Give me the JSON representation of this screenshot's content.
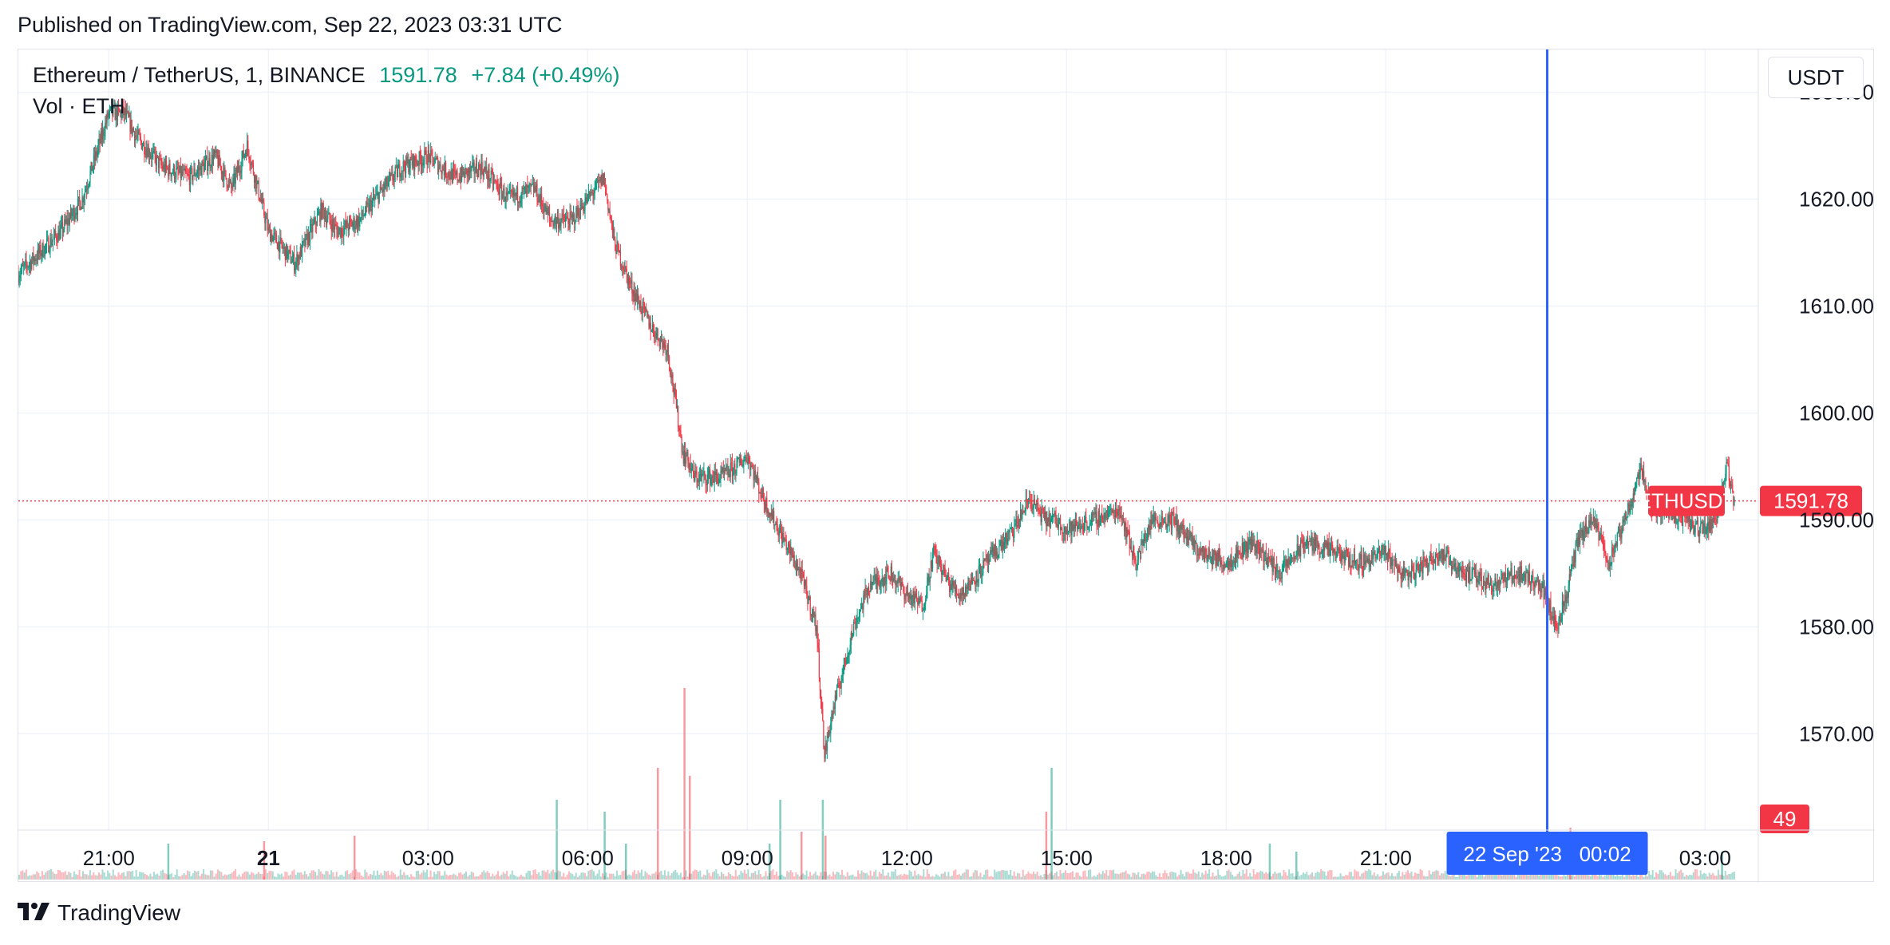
{
  "header": {
    "published": "Published on TradingView.com, Sep 22, 2023 03:31 UTC"
  },
  "legend": {
    "symbol": "Ethereum / TetherUS, 1, BINANCE",
    "last_price": "1591.78",
    "change": "+7.84 (+0.49%)",
    "volume_label": "Vol · ETH"
  },
  "currency_button": "USDT",
  "footer": {
    "brand": "TradingView",
    "logo_icon": "tradingview-logo-icon"
  },
  "colors": {
    "up": "#089981",
    "down": "#f23645",
    "crosshair": "#2962ff",
    "grid": "#f0f3fa"
  },
  "chart_data": {
    "type": "candlestick",
    "symbol": "ETHUSDT",
    "interval": "1",
    "last_price": 1591.78,
    "last_price_label": "ETHUSDT",
    "last_volume": 49,
    "ylim": [
      1561,
      1634
    ],
    "y_ticks": [
      "1630.00",
      "1620.00",
      "1610.00",
      "1600.00",
      "1590.00",
      "1580.00",
      "1570.00"
    ],
    "y_tick_values": [
      1630,
      1620,
      1610,
      1600,
      1590,
      1580,
      1570
    ],
    "x_ticks": [
      "21:00",
      "21",
      "03:00",
      "06:00",
      "09:00",
      "12:00",
      "15:00",
      "18:00",
      "21:00",
      "03:00"
    ],
    "x_tick_hours": [
      0,
      3,
      6,
      9,
      12,
      15,
      18,
      21,
      24,
      30
    ],
    "x_range_hours": [
      -1.7,
      31.0
    ],
    "crosshair_label": "22 Sep '23   00:02",
    "crosshair_hour": 27.033,
    "grid": true,
    "price_path": {
      "time_hours": [
        -1.7,
        -1.3,
        -0.9,
        -0.5,
        0.0,
        0.3,
        0.5,
        1.0,
        1.5,
        2.0,
        2.3,
        2.6,
        3.0,
        3.5,
        4.0,
        4.3,
        4.7,
        5.0,
        5.5,
        6.0,
        6.5,
        7.0,
        7.5,
        8.0,
        8.3,
        8.7,
        9.0,
        9.3,
        9.5,
        9.8,
        10.2,
        10.5,
        10.8,
        10.85,
        11.0,
        11.5,
        11.8,
        12.0,
        12.3,
        12.7,
        13.0,
        13.3,
        13.45,
        13.6,
        13.8,
        14.0,
        14.3,
        14.7,
        15.0,
        15.3,
        15.5,
        15.8,
        16.0,
        16.5,
        17.0,
        17.3,
        17.6,
        17.8,
        18.0,
        18.5,
        19.0,
        19.3,
        19.6,
        20.0,
        20.5,
        21.0,
        21.5,
        22.0,
        22.5,
        23.0,
        23.5,
        24.0,
        24.3,
        24.5,
        25.0,
        25.5,
        26.0,
        26.5,
        26.9,
        27.0,
        27.2,
        27.4,
        27.6,
        27.9,
        28.2,
        28.5,
        28.8,
        29.0,
        29.3,
        29.6,
        29.9,
        30.2,
        30.4,
        30.55
      ],
      "close": [
        1613,
        1615,
        1617,
        1620,
        1628,
        1628,
        1626,
        1623,
        1622,
        1624,
        1621,
        1625,
        1617,
        1614,
        1619,
        1617,
        1618,
        1620,
        1623,
        1624,
        1622,
        1623,
        1620,
        1621,
        1618,
        1618,
        1620,
        1622,
        1616,
        1612,
        1608,
        1606,
        1596,
        1596,
        1594,
        1594,
        1595,
        1596,
        1592,
        1588,
        1585,
        1580,
        1568,
        1572,
        1576,
        1580,
        1584,
        1585,
        1583,
        1582,
        1587,
        1584,
        1583,
        1586,
        1589,
        1592,
        1590,
        1590,
        1589,
        1590,
        1591,
        1586,
        1590,
        1590,
        1587,
        1586,
        1588,
        1585,
        1588,
        1587,
        1586,
        1587,
        1585,
        1585,
        1587,
        1585,
        1584,
        1585,
        1584,
        1583,
        1580,
        1583,
        1588,
        1590,
        1586,
        1590,
        1595,
        1591,
        1591,
        1590,
        1589,
        1590,
        1595,
        1591.78
      ]
    },
    "volume_ylim": [
      0,
      260
    ],
    "volume_spikes": [
      {
        "hour": 8.4,
        "value": 100,
        "dir": "up"
      },
      {
        "hour": 9.3,
        "value": 85,
        "dir": "up"
      },
      {
        "hour": 10.3,
        "value": 140,
        "dir": "down"
      },
      {
        "hour": 10.8,
        "value": 240,
        "dir": "down"
      },
      {
        "hour": 10.9,
        "value": 130,
        "dir": "down"
      },
      {
        "hour": 12.6,
        "value": 100,
        "dir": "up"
      },
      {
        "hour": 13.0,
        "value": 60,
        "dir": "down"
      },
      {
        "hour": 13.4,
        "value": 100,
        "dir": "up"
      },
      {
        "hour": 13.45,
        "value": 55,
        "dir": "down"
      },
      {
        "hour": 17.7,
        "value": 140,
        "dir": "up"
      },
      {
        "hour": 17.6,
        "value": 85,
        "dir": "down"
      },
      {
        "hour": 27.45,
        "value": 65,
        "dir": "down"
      },
      {
        "hour": 1.1,
        "value": 45,
        "dir": "up"
      },
      {
        "hour": 2.9,
        "value": 48,
        "dir": "down"
      },
      {
        "hour": 4.6,
        "value": 55,
        "dir": "down"
      },
      {
        "hour": 9.7,
        "value": 45,
        "dir": "up"
      },
      {
        "hour": 12.4,
        "value": 45,
        "dir": "up"
      },
      {
        "hour": 21.8,
        "value": 45,
        "dir": "up"
      },
      {
        "hour": 22.3,
        "value": 35,
        "dir": "up"
      },
      {
        "hour": 30.3,
        "value": 35,
        "dir": "up"
      }
    ]
  }
}
